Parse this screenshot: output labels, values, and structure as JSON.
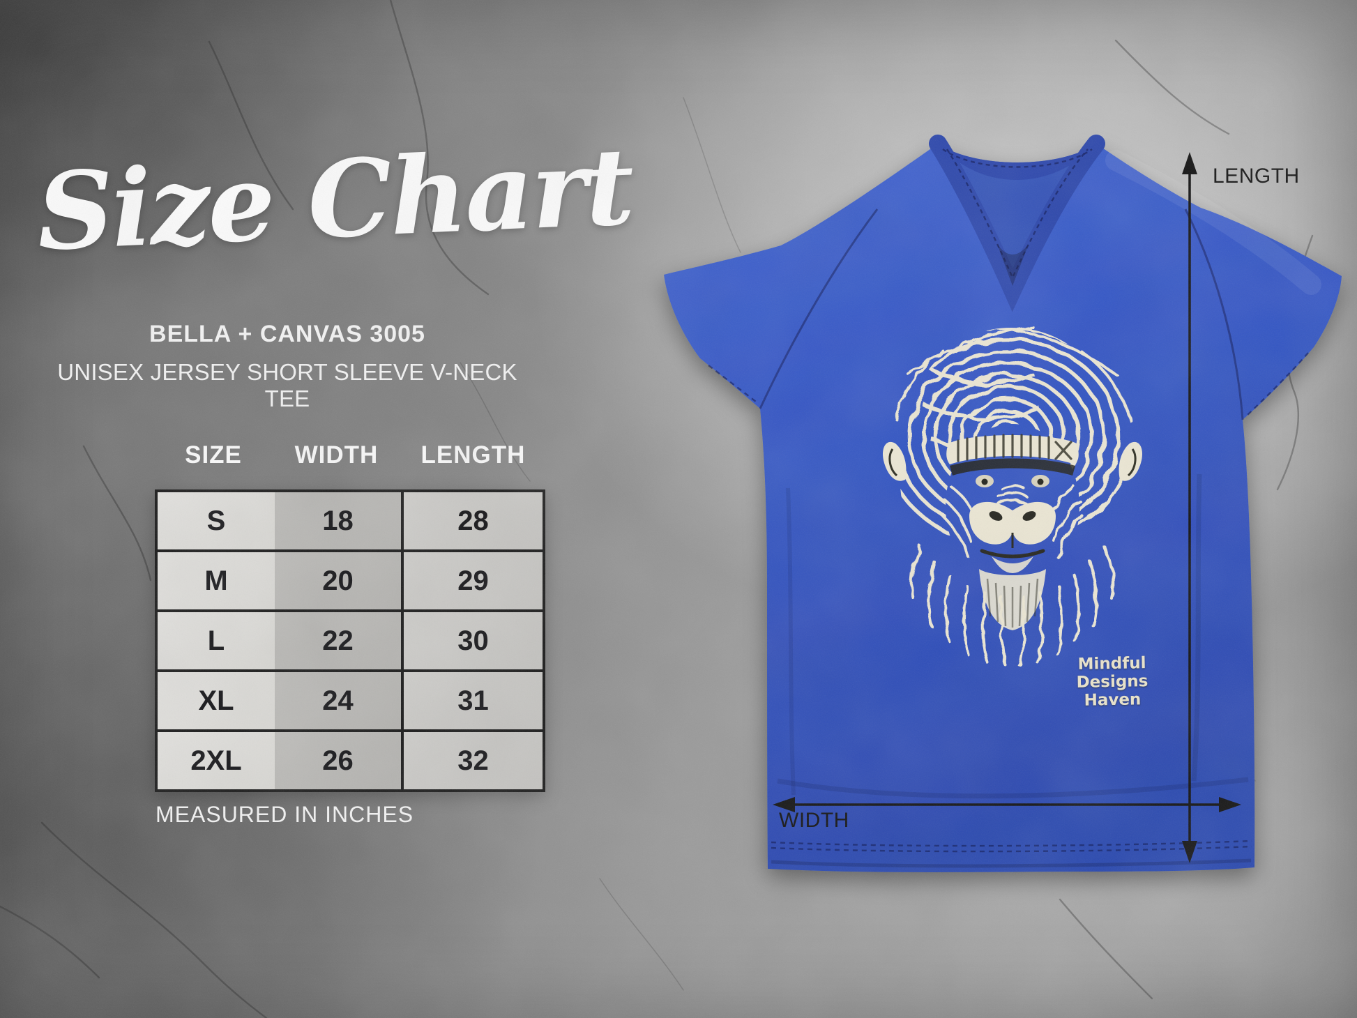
{
  "title": "Size Chart",
  "subtitle": {
    "brand": "BELLA + CANVAS 3005",
    "product": "UNISEX JERSEY SHORT SLEEVE V-NECK TEE"
  },
  "chart_data": {
    "type": "table",
    "title": "Size Chart",
    "columns": [
      "SIZE",
      "WIDTH",
      "LENGTH"
    ],
    "rows": [
      [
        "S",
        "18",
        "28"
      ],
      [
        "M",
        "20",
        "29"
      ],
      [
        "L",
        "22",
        "30"
      ],
      [
        "XL",
        "24",
        "31"
      ],
      [
        "2XL",
        "26",
        "32"
      ]
    ],
    "footnote": "MEASURED IN INCHES",
    "units": "inches"
  },
  "shirt": {
    "dimension_labels": {
      "length": "LENGTH",
      "width": "WIDTH"
    },
    "print_credit_line1": "Mindful Designs",
    "print_credit_line2": "Haven",
    "garment_color_hex": "#3355c4",
    "print_color_hex": "#ece7d4"
  },
  "colors": {
    "arrow_black": "#141414",
    "table_border": "#1b1b1b",
    "text_white": "#f4f4f4",
    "background_gray": "#8e8e8e"
  }
}
